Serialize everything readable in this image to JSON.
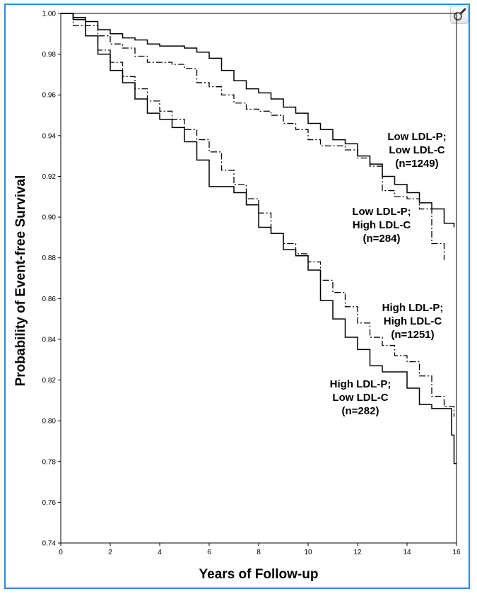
{
  "chart_data": {
    "type": "line",
    "xlabel": "Years of Follow-up",
    "ylabel": "Probability of Event-free Survival",
    "xlim": [
      0,
      16
    ],
    "ylim": [
      0.74,
      1.0
    ],
    "x_ticks": [
      "0",
      "2",
      "4",
      "6",
      "8",
      "10",
      "12",
      "14",
      "16"
    ],
    "y_ticks": [
      "0.74",
      "0.76",
      "0.78",
      "0.80",
      "0.82",
      "0.84",
      "0.86",
      "0.88",
      "0.90",
      "0.92",
      "0.94",
      "0.96",
      "0.98",
      "1.00"
    ],
    "grid": false,
    "series": [
      {
        "style": "solid",
        "label_lines": [
          "Low LDL-P;",
          "Low LDL-C",
          "(n=1249)"
        ],
        "x": [
          0,
          0.5,
          1,
          1.5,
          2,
          2.5,
          3,
          3.5,
          4,
          4.5,
          5,
          5.5,
          6,
          6.5,
          7,
          7.5,
          8,
          8.5,
          9,
          9.5,
          10,
          10.5,
          11,
          11.5,
          12,
          12.5,
          13,
          13.5,
          14,
          14.5,
          15,
          15.5,
          15.9
        ],
        "y": [
          1.0,
          0.998,
          0.996,
          0.992,
          0.99,
          0.988,
          0.987,
          0.985,
          0.984,
          0.984,
          0.983,
          0.981,
          0.978,
          0.972,
          0.967,
          0.963,
          0.961,
          0.958,
          0.954,
          0.951,
          0.946,
          0.943,
          0.938,
          0.936,
          0.93,
          0.926,
          0.92,
          0.916,
          0.912,
          0.907,
          0.904,
          0.897,
          0.895
        ]
      },
      {
        "style": "dashdot",
        "label_lines": [
          "Low LDL-P;",
          "High LDL-C",
          "(n=284)"
        ],
        "x": [
          0,
          0.5,
          1,
          1.5,
          2,
          2.5,
          3,
          3.5,
          4,
          4.5,
          5,
          5.5,
          6,
          6.5,
          7,
          7.5,
          8,
          8.5,
          9,
          9.5,
          10,
          10.5,
          11,
          11.5,
          12,
          12.5,
          13,
          13.5,
          14,
          14.5,
          15,
          15.5
        ],
        "y": [
          1.0,
          0.997,
          0.994,
          0.989,
          0.985,
          0.983,
          0.979,
          0.976,
          0.976,
          0.975,
          0.973,
          0.966,
          0.964,
          0.96,
          0.956,
          0.953,
          0.952,
          0.95,
          0.946,
          0.943,
          0.938,
          0.935,
          0.935,
          0.933,
          0.929,
          0.925,
          0.913,
          0.91,
          0.909,
          0.904,
          0.887,
          0.879
        ]
      },
      {
        "style": "dashdot",
        "label_lines": [
          "High LDL-P;",
          "High LDL-C",
          "(n=1251)"
        ],
        "x": [
          0,
          0.5,
          1,
          1.5,
          2,
          2.5,
          3,
          3.5,
          4,
          4.5,
          5,
          5.5,
          6,
          6.5,
          7,
          7.5,
          8,
          8.5,
          9,
          9.5,
          10,
          10.5,
          11,
          11.5,
          12,
          12.5,
          13,
          13.5,
          14,
          14.5,
          15,
          15.5,
          15.9
        ],
        "y": [
          1.0,
          0.994,
          0.989,
          0.982,
          0.976,
          0.969,
          0.963,
          0.957,
          0.952,
          0.948,
          0.943,
          0.938,
          0.932,
          0.923,
          0.916,
          0.909,
          0.902,
          0.892,
          0.887,
          0.882,
          0.878,
          0.869,
          0.863,
          0.856,
          0.848,
          0.841,
          0.837,
          0.832,
          0.829,
          0.822,
          0.812,
          0.807,
          0.802
        ]
      },
      {
        "style": "solid",
        "label_lines": [
          "High LDL-P;",
          "Low LDL-C",
          "(n=282)"
        ],
        "x": [
          0,
          0.5,
          1,
          1.5,
          2,
          2.5,
          3,
          3.5,
          4,
          4.5,
          5,
          5.5,
          6,
          6.5,
          7,
          7.5,
          8,
          8.5,
          9,
          9.5,
          10,
          10.5,
          11,
          11.5,
          12,
          12.5,
          13,
          13.5,
          14,
          14.5,
          15,
          15.5,
          15.8,
          15.9,
          16.0
        ],
        "y": [
          1.0,
          0.997,
          0.989,
          0.98,
          0.972,
          0.966,
          0.958,
          0.951,
          0.948,
          0.944,
          0.937,
          0.928,
          0.915,
          0.915,
          0.912,
          0.906,
          0.895,
          0.892,
          0.884,
          0.881,
          0.874,
          0.859,
          0.85,
          0.841,
          0.835,
          0.827,
          0.824,
          0.824,
          0.816,
          0.808,
          0.806,
          0.806,
          0.793,
          0.779,
          0.779
        ]
      }
    ]
  }
}
